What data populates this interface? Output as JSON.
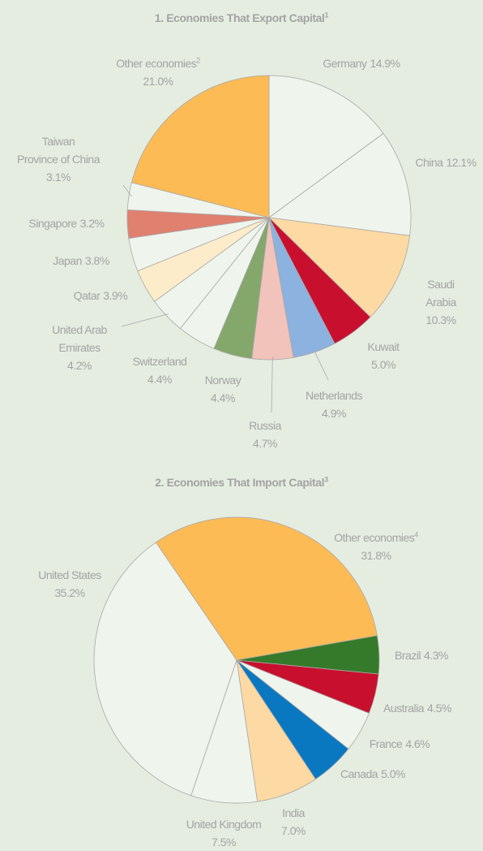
{
  "chart_data": [
    {
      "type": "pie",
      "title": "1. Economies That Export Capital",
      "title_note": "1",
      "categories": [
        "Germany",
        "China",
        "Saudi Arabia",
        "Kuwait",
        "Netherlands",
        "Russia",
        "Norway",
        "Switzerland",
        "United Arab\nEmirates",
        "Qatar",
        "Japan",
        "Singapore",
        "Taiwan\nProvince of China",
        "Other economies"
      ],
      "category_notes": [
        null,
        null,
        null,
        null,
        null,
        null,
        null,
        null,
        null,
        null,
        null,
        null,
        null,
        "2"
      ],
      "values": [
        14.9,
        12.1,
        10.3,
        5.0,
        4.9,
        4.7,
        4.4,
        4.4,
        4.2,
        3.9,
        3.8,
        3.2,
        3.1,
        21.0
      ],
      "value_labels": [
        "14.9%",
        "12.1%",
        "10.3%",
        "5.0%",
        "4.9%",
        "4.7%",
        "4.4%",
        "4.4%",
        "4.2%",
        "3.9%",
        "3.8%",
        "3.2%",
        "3.1%",
        "21.0%"
      ],
      "colors": [
        "#eff4ec",
        "#eff4ec",
        "#fdd9a3",
        "#c8102e",
        "#8cb2e0",
        "#f1c3bb",
        "#84a76c",
        "#eff4ec",
        "#eff4ec",
        "#fdecca",
        "#eff4ec",
        "#e0806f",
        "#eff4ec",
        "#fdbb55"
      ]
    },
    {
      "type": "pie",
      "title": "2. Economies That Import Capital",
      "title_note": "3",
      "categories": [
        "Other economies",
        "Brazil",
        "Australia",
        "France",
        "Canada",
        "India",
        "United Kingdom",
        "United States"
      ],
      "category_notes": [
        "4",
        null,
        null,
        null,
        null,
        null,
        null,
        null
      ],
      "values": [
        31.8,
        4.3,
        4.5,
        4.6,
        5.0,
        7.0,
        7.5,
        35.2
      ],
      "value_labels": [
        "31.8%",
        "4.3%",
        "4.5%",
        "4.6%",
        "5.0%",
        "7.0%",
        "7.5%",
        "35.2%"
      ],
      "colors": [
        "#fdbb55",
        "#357a2a",
        "#c8102e",
        "#eff4ec",
        "#0a78c0",
        "#fdd9a3",
        "#eff4ec",
        "#eff4ec"
      ]
    }
  ]
}
